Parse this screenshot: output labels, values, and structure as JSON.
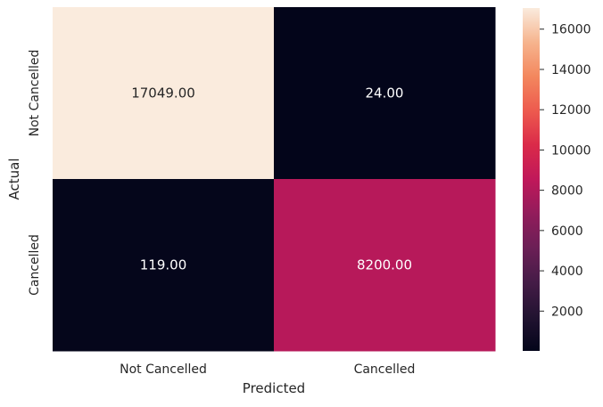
{
  "chart_data": {
    "type": "heatmap",
    "title": "",
    "xlabel": "Predicted",
    "ylabel": "Actual",
    "x_categories": [
      "Not Cancelled",
      "Cancelled"
    ],
    "y_categories": [
      "Not Cancelled",
      "Cancelled"
    ],
    "values": [
      [
        17049,
        24
      ],
      [
        119,
        8200
      ]
    ],
    "cell_labels": [
      [
        "17049.00",
        "24.00"
      ],
      [
        "119.00",
        "8200.00"
      ]
    ],
    "colormap": "rocket",
    "colorbar": {
      "range": [
        24,
        17049
      ],
      "ticks": [
        2000,
        4000,
        6000,
        8000,
        10000,
        12000,
        14000,
        16000
      ],
      "tick_labels": [
        "2000",
        "4000",
        "6000",
        "8000",
        "10000",
        "12000",
        "14000",
        "16000"
      ]
    },
    "colors": {
      "stops": [
        "#03051a",
        "#221331",
        "#451c47",
        "#6b1f56",
        "#921c5b",
        "#c0185a",
        "#da2a49",
        "#ed5a4e",
        "#f3875e",
        "#f6b48e",
        "#faebdd"
      ]
    }
  }
}
